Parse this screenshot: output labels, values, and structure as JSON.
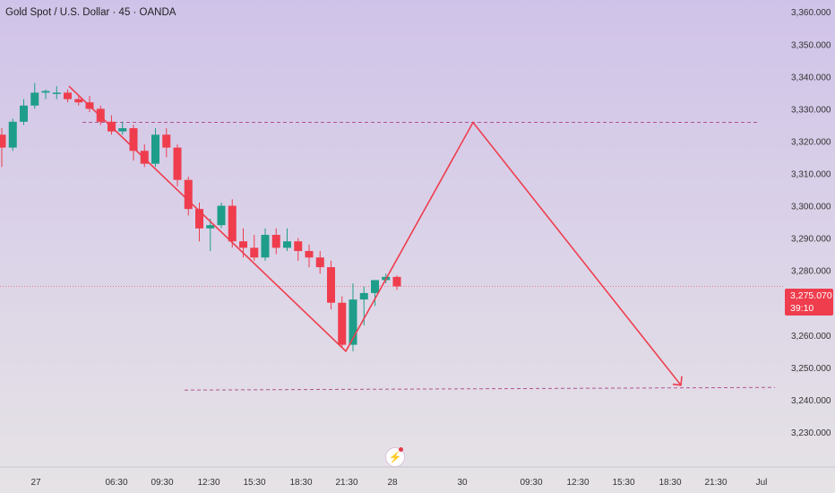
{
  "header": {
    "title": "Gold Spot / U.S. Dollar · 45 · OANDA"
  },
  "price_label": {
    "price": "3,275.070",
    "countdown": "39:10"
  },
  "icons": {
    "event_marker": "lightning-icon"
  },
  "colors": {
    "up": "#1e9e8a",
    "down": "#ef3d4d",
    "arrow": "#ef3d4d",
    "level": "#b15592",
    "bg_top": "#d0c3e9",
    "bg_bottom": "#e6e3e6"
  },
  "chart_data": {
    "type": "candlestick",
    "title": "Gold Spot / U.S. Dollar · 45 · OANDA",
    "ylim": [
      3225,
      3362
    ],
    "y_ticks": [
      "3,360.000",
      "3,350.000",
      "3,340.000",
      "3,330.000",
      "3,320.000",
      "3,310.000",
      "3,300.000",
      "3,290.000",
      "3,280.000",
      "3,270.000",
      "3,260.000",
      "3,250.000",
      "3,240.000",
      "3,230.000"
    ],
    "x_ticks": [
      "27",
      "06:30",
      "09:30",
      "12:30",
      "15:30",
      "18:30",
      "21:30",
      "28",
      "30",
      "09:30",
      "12:30",
      "15:30",
      "18:30",
      "21:30",
      "Jul"
    ],
    "candles": [
      {
        "o": 3322,
        "h": 3324,
        "l": 3312,
        "c": 3318
      },
      {
        "o": 3318,
        "h": 3327,
        "l": 3317,
        "c": 3326
      },
      {
        "o": 3326,
        "h": 3333,
        "l": 3325,
        "c": 3331
      },
      {
        "o": 3331,
        "h": 3338,
        "l": 3330,
        "c": 3335
      },
      {
        "o": 3335,
        "h": 3336,
        "l": 3333,
        "c": 3335.5
      },
      {
        "o": 3335,
        "h": 3337,
        "l": 3333,
        "c": 3335
      },
      {
        "o": 3335,
        "h": 3336,
        "l": 3332,
        "c": 3333
      },
      {
        "o": 3333,
        "h": 3334,
        "l": 3331,
        "c": 3332
      },
      {
        "o": 3332,
        "h": 3334,
        "l": 3329,
        "c": 3330
      },
      {
        "o": 3330,
        "h": 3331,
        "l": 3325,
        "c": 3326
      },
      {
        "o": 3326,
        "h": 3328,
        "l": 3322,
        "c": 3323
      },
      {
        "o": 3323,
        "h": 3326,
        "l": 3322,
        "c": 3324
      },
      {
        "o": 3324,
        "h": 3325,
        "l": 3314,
        "c": 3317
      },
      {
        "o": 3317,
        "h": 3319,
        "l": 3312,
        "c": 3313
      },
      {
        "o": 3313,
        "h": 3324,
        "l": 3312,
        "c": 3322
      },
      {
        "o": 3322,
        "h": 3324,
        "l": 3315,
        "c": 3318
      },
      {
        "o": 3318,
        "h": 3319,
        "l": 3306,
        "c": 3308
      },
      {
        "o": 3308,
        "h": 3309,
        "l": 3297,
        "c": 3299
      },
      {
        "o": 3299,
        "h": 3301,
        "l": 3289,
        "c": 3293
      },
      {
        "o": 3293,
        "h": 3296,
        "l": 3286,
        "c": 3294
      },
      {
        "o": 3294,
        "h": 3301,
        "l": 3293,
        "c": 3300
      },
      {
        "o": 3300,
        "h": 3302,
        "l": 3287,
        "c": 3289
      },
      {
        "o": 3289,
        "h": 3293,
        "l": 3284,
        "c": 3287
      },
      {
        "o": 3287,
        "h": 3291,
        "l": 3283,
        "c": 3284
      },
      {
        "o": 3284,
        "h": 3293,
        "l": 3283,
        "c": 3291
      },
      {
        "o": 3291,
        "h": 3293,
        "l": 3285,
        "c": 3287
      },
      {
        "o": 3287,
        "h": 3293,
        "l": 3286,
        "c": 3289
      },
      {
        "o": 3289,
        "h": 3290,
        "l": 3283,
        "c": 3286
      },
      {
        "o": 3286,
        "h": 3288,
        "l": 3281,
        "c": 3284
      },
      {
        "o": 3284,
        "h": 3286,
        "l": 3279,
        "c": 3281
      },
      {
        "o": 3281,
        "h": 3283,
        "l": 3268,
        "c": 3270
      },
      {
        "o": 3270,
        "h": 3272,
        "l": 3256,
        "c": 3257
      },
      {
        "o": 3257,
        "h": 3276,
        "l": 3255,
        "c": 3271
      },
      {
        "o": 3271,
        "h": 3275,
        "l": 3263,
        "c": 3273
      },
      {
        "o": 3273,
        "h": 3277,
        "l": 3269,
        "c": 3277
      },
      {
        "o": 3277,
        "h": 3279,
        "l": 3276,
        "c": 3278
      },
      {
        "o": 3278,
        "h": 3278.5,
        "l": 3274,
        "c": 3275.07
      }
    ],
    "last_price": 3275.07,
    "levels": [
      3325.8,
      3243.8
    ],
    "projection": [
      3337,
      3255,
      3325.8,
      3244.5
    ],
    "legend": "none",
    "grid": false
  }
}
